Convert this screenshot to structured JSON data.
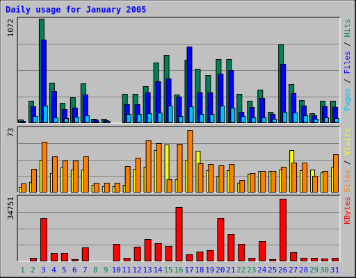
{
  "chart_data": {
    "type": "bar",
    "title": "Daily usage for January 2005",
    "days": [
      "1",
      "2",
      "3",
      "4",
      "5",
      "6",
      "7",
      "8",
      "9",
      "10",
      "11",
      "12",
      "13",
      "14",
      "15",
      "16",
      "17",
      "18",
      "19",
      "20",
      "21",
      "22",
      "23",
      "24",
      "25",
      "26",
      "27",
      "28",
      "29",
      "30",
      "31"
    ],
    "weekend_days": [
      "1",
      "2",
      "8",
      "9",
      "15",
      "16",
      "22",
      "23",
      "29",
      "30"
    ],
    "panels": [
      {
        "id": "requests",
        "max_label": "1072",
        "ymax": 1072,
        "legend": [
          {
            "text": "Pages",
            "color": "#00C0FF"
          },
          {
            "text": " / ",
            "color": "#000000"
          },
          {
            "text": "Files",
            "color": "#0000FF"
          },
          {
            "text": " / ",
            "color": "#000000"
          },
          {
            "text": "Hits",
            "color": "#00805C"
          }
        ],
        "series": [
          {
            "name": "Hits",
            "color": "#00805C",
            "values": [
              35,
              230,
              1072,
              415,
              205,
              265,
              405,
              45,
              40,
              0,
              300,
              300,
              380,
              620,
              700,
              290,
              650,
              560,
              490,
              660,
              660,
              300,
              230,
              345,
              115,
              810,
              400,
              235,
              100,
              230,
              230
            ]
          },
          {
            "name": "Files",
            "color": "#0000FF",
            "values": [
              25,
              170,
              860,
              330,
              140,
              155,
              295,
              35,
              30,
              0,
              195,
              195,
              315,
              430,
              460,
              270,
              785,
              315,
              315,
              505,
              540,
              115,
              165,
              255,
              95,
              605,
              310,
              180,
              80,
              170,
              165
            ]
          },
          {
            "name": "Pages",
            "color": "#00C0FF",
            "values": [
              8,
              70,
              180,
              60,
              50,
              65,
              80,
              15,
              20,
              0,
              95,
              90,
              100,
              105,
              180,
              75,
              175,
              95,
              90,
              180,
              160,
              70,
              55,
              60,
              40,
              115,
              110,
              80,
              45,
              60,
              50
            ]
          }
        ]
      },
      {
        "id": "visits",
        "max_label": "73",
        "ymax": 73,
        "legend": [
          {
            "text": "Sites",
            "color": "#FF8000"
          },
          {
            "text": " / ",
            "color": "#000000"
          },
          {
            "text": "Visits",
            "color": "#FFFF00"
          }
        ],
        "series": [
          {
            "name": "Visits",
            "color": "#FFFF00",
            "values": [
              6,
              12,
              37,
              22,
              28,
              26,
              26,
              9,
              7,
              7,
              9,
              27,
              29,
              48,
              54,
              15,
              37,
              47,
              25,
              19,
              25,
              11,
              21,
              24,
              24,
              26,
              48,
              25,
              26,
              23,
              29
            ]
          },
          {
            "name": "Sites",
            "color": "#FF8000",
            "values": [
              10,
              27,
              57,
              41,
              36,
              36,
              41,
              11,
              11,
              11,
              30,
              39,
              59,
              56,
              15,
              55,
              71,
              33,
              32,
              31,
              32,
              14,
              22,
              24,
              24,
              29,
              34,
              34,
              19,
              24,
              43
            ]
          }
        ]
      },
      {
        "id": "kbytes",
        "max_label": "34751",
        "ymax": 34751,
        "legend": [
          {
            "text": "KBytes",
            "color": "#FF0000"
          }
        ],
        "series": [
          {
            "name": "KBytes",
            "color": "#FF0000",
            "values": [
              500,
              1700,
              23300,
              4300,
              4300,
              1000,
              7300,
              500,
              500,
              9400,
              1700,
              7900,
              11800,
              9900,
              8300,
              29100,
              3800,
              5300,
              5800,
              23300,
              14400,
              9400,
              1700,
              10800,
              1000,
              33500,
              5000,
              2000,
              2000,
              1500,
              2000
            ]
          }
        ]
      }
    ]
  },
  "colors": {
    "background": "#C0C0C0",
    "gridline": "#808080",
    "title": "#0000FF",
    "weekday_label": "#0000FF",
    "weekend_label": "#00805C"
  }
}
